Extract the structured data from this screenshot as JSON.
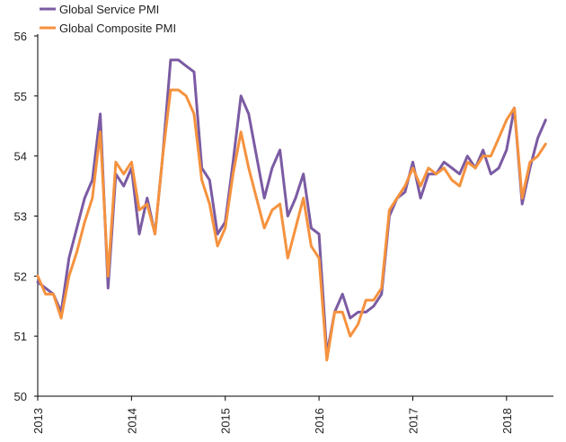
{
  "chart_data": {
    "type": "line",
    "title": "",
    "xlabel": "",
    "ylabel": "",
    "ylim": [
      50,
      56
    ],
    "yticks": [
      50,
      51,
      52,
      53,
      54,
      55,
      56
    ],
    "xlim": [
      2013.0,
      2018.5
    ],
    "xticks": [
      2013,
      2014,
      2015,
      2016,
      2017,
      2018
    ],
    "xtick_labels": [
      "2013",
      "2014",
      "2015",
      "2016",
      "2017",
      "2018"
    ],
    "grid": false,
    "legend_position": "top-left",
    "series": [
      {
        "name": "Global Service PMI",
        "color": "#7B5BA3",
        "x": [
          2013.0,
          2013.083,
          2013.167,
          2013.25,
          2013.333,
          2013.417,
          2013.5,
          2013.583,
          2013.667,
          2013.75,
          2013.833,
          2013.917,
          2014.0,
          2014.083,
          2014.167,
          2014.25,
          2014.333,
          2014.417,
          2014.5,
          2014.583,
          2014.667,
          2014.75,
          2014.833,
          2014.917,
          2015.0,
          2015.083,
          2015.167,
          2015.25,
          2015.333,
          2015.417,
          2015.5,
          2015.583,
          2015.667,
          2015.75,
          2015.833,
          2015.917,
          2016.0,
          2016.083,
          2016.167,
          2016.25,
          2016.333,
          2016.417,
          2016.5,
          2016.583,
          2016.667,
          2016.75,
          2016.833,
          2016.917,
          2017.0,
          2017.083,
          2017.167,
          2017.25,
          2017.333,
          2017.417,
          2017.5,
          2017.583,
          2017.667,
          2017.75,
          2017.833,
          2017.917,
          2018.0,
          2018.083,
          2018.167,
          2018.25,
          2018.333,
          2018.417
        ],
        "values": [
          51.9,
          51.8,
          51.7,
          51.4,
          52.3,
          52.8,
          53.3,
          53.6,
          54.7,
          51.8,
          53.7,
          53.5,
          53.8,
          52.7,
          53.3,
          52.7,
          54.0,
          55.6,
          55.6,
          55.5,
          55.4,
          53.8,
          53.6,
          52.7,
          52.9,
          53.9,
          55.0,
          54.7,
          54.0,
          53.3,
          53.8,
          54.1,
          53.0,
          53.3,
          53.7,
          52.8,
          52.7,
          50.7,
          51.4,
          51.7,
          51.3,
          51.4,
          51.4,
          51.5,
          51.7,
          53.0,
          53.3,
          53.4,
          53.9,
          53.3,
          53.7,
          53.7,
          53.9,
          53.8,
          53.7,
          54.0,
          53.8,
          54.1,
          53.7,
          53.8,
          54.1,
          54.8,
          53.2,
          53.8,
          54.3,
          54.6
        ]
      },
      {
        "name": "Global Composite PMI",
        "color": "#F5923E",
        "x": [
          2013.0,
          2013.083,
          2013.167,
          2013.25,
          2013.333,
          2013.417,
          2013.5,
          2013.583,
          2013.667,
          2013.75,
          2013.833,
          2013.917,
          2014.0,
          2014.083,
          2014.167,
          2014.25,
          2014.333,
          2014.417,
          2014.5,
          2014.583,
          2014.667,
          2014.75,
          2014.833,
          2014.917,
          2015.0,
          2015.083,
          2015.167,
          2015.25,
          2015.333,
          2015.417,
          2015.5,
          2015.583,
          2015.667,
          2015.75,
          2015.833,
          2015.917,
          2016.0,
          2016.083,
          2016.167,
          2016.25,
          2016.333,
          2016.417,
          2016.5,
          2016.583,
          2016.667,
          2016.75,
          2016.833,
          2016.917,
          2017.0,
          2017.083,
          2017.167,
          2017.25,
          2017.333,
          2017.417,
          2017.5,
          2017.583,
          2017.667,
          2017.75,
          2017.833,
          2017.917,
          2018.0,
          2018.083,
          2018.167,
          2018.25,
          2018.333,
          2018.417
        ],
        "values": [
          52.0,
          51.7,
          51.7,
          51.3,
          52.0,
          52.4,
          52.9,
          53.3,
          54.4,
          52.0,
          53.9,
          53.7,
          53.9,
          53.1,
          53.2,
          52.7,
          54.0,
          55.1,
          55.1,
          55.0,
          54.7,
          53.6,
          53.2,
          52.5,
          52.8,
          53.7,
          54.4,
          53.8,
          53.3,
          52.8,
          53.1,
          53.2,
          52.3,
          52.8,
          53.3,
          52.5,
          52.3,
          50.6,
          51.4,
          51.4,
          51.0,
          51.2,
          51.6,
          51.6,
          51.8,
          53.1,
          53.3,
          53.5,
          53.8,
          53.5,
          53.8,
          53.7,
          53.8,
          53.6,
          53.5,
          53.9,
          53.8,
          54.0,
          54.0,
          54.3,
          54.6,
          54.8,
          53.3,
          53.9,
          54.0,
          54.2
        ]
      }
    ]
  }
}
